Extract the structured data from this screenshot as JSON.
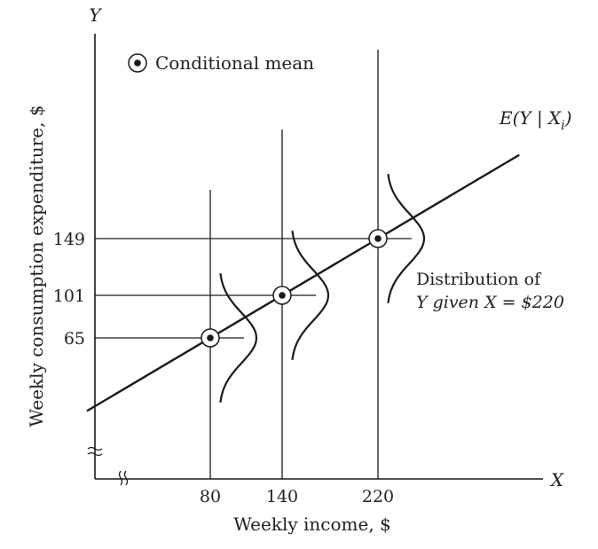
{
  "chart_data": {
    "type": "scatter",
    "title": "",
    "xlabel": "Weekly income, $",
    "ylabel": "Weekly consumption expenditure, $",
    "x_axis_letter": "X",
    "y_axis_letter": "Y",
    "x_ticks": [
      "80",
      "140",
      "220"
    ],
    "y_ticks": [
      "149",
      "101",
      "65"
    ],
    "series": [
      {
        "name": "Conditional mean",
        "points": [
          {
            "x": 80,
            "y": 65
          },
          {
            "x": 140,
            "y": 101
          },
          {
            "x": 220,
            "y": 149
          }
        ]
      }
    ],
    "regression_line": {
      "label_prefix": "E(Y | X",
      "label_sub": "i",
      "label_suffix": ")"
    },
    "legend": {
      "label": "Conditional mean",
      "position": "top-left"
    },
    "annotation": {
      "line1": "Distribution of",
      "line2": "Y given X  = $220"
    },
    "axis_breaks": true,
    "grid": false
  }
}
